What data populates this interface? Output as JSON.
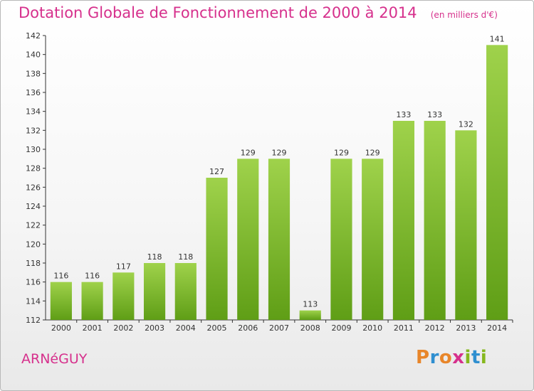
{
  "header": {
    "title": "Dotation Globale de Fonctionnement de 2000 à 2014",
    "unit": "(en milliers d'€)"
  },
  "footer": {
    "commune": "ARNéGUY",
    "logo_letters": [
      "P",
      "r",
      "o",
      "x",
      "i",
      "t",
      "i"
    ],
    "logo_colors": [
      "#e8862a",
      "#2f8fd0",
      "#e8862a",
      "#d6308c",
      "#86b81e",
      "#2f8fd0",
      "#86b81e"
    ]
  },
  "colors": {
    "title": "#d6308c",
    "bar_light": "#9fd24b",
    "bar_dark": "#5f9e16",
    "axis": "#333333"
  },
  "chart_data": {
    "type": "bar",
    "categories": [
      "2000",
      "2001",
      "2002",
      "2003",
      "2004",
      "2005",
      "2006",
      "2007",
      "2008",
      "2009",
      "2010",
      "2011",
      "2012",
      "2013",
      "2014"
    ],
    "values": [
      116,
      116,
      117,
      118,
      118,
      127,
      129,
      129,
      113,
      129,
      129,
      133,
      133,
      132,
      141
    ],
    "ylim": [
      112,
      142
    ],
    "yticks": [
      112,
      114,
      116,
      118,
      120,
      122,
      124,
      126,
      128,
      130,
      132,
      134,
      136,
      138,
      140,
      142
    ],
    "grid": false,
    "data_labels": true
  }
}
